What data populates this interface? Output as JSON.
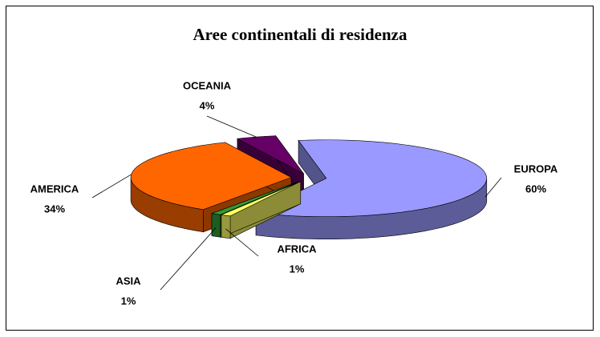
{
  "chart_data": {
    "type": "pie3d",
    "title": "Aree continentali di residenza",
    "categories": [
      "EUROPA",
      "AFRICA",
      "ASIA",
      "AMERICA",
      "OCEANIA"
    ],
    "values": [
      60,
      1,
      1,
      34,
      4
    ],
    "value_labels": [
      "60%",
      "1%",
      "1%",
      "34%",
      "4%"
    ],
    "colors": [
      "#9999ff",
      "#ffff66",
      "#339933",
      "#ff6600",
      "#660066"
    ]
  }
}
